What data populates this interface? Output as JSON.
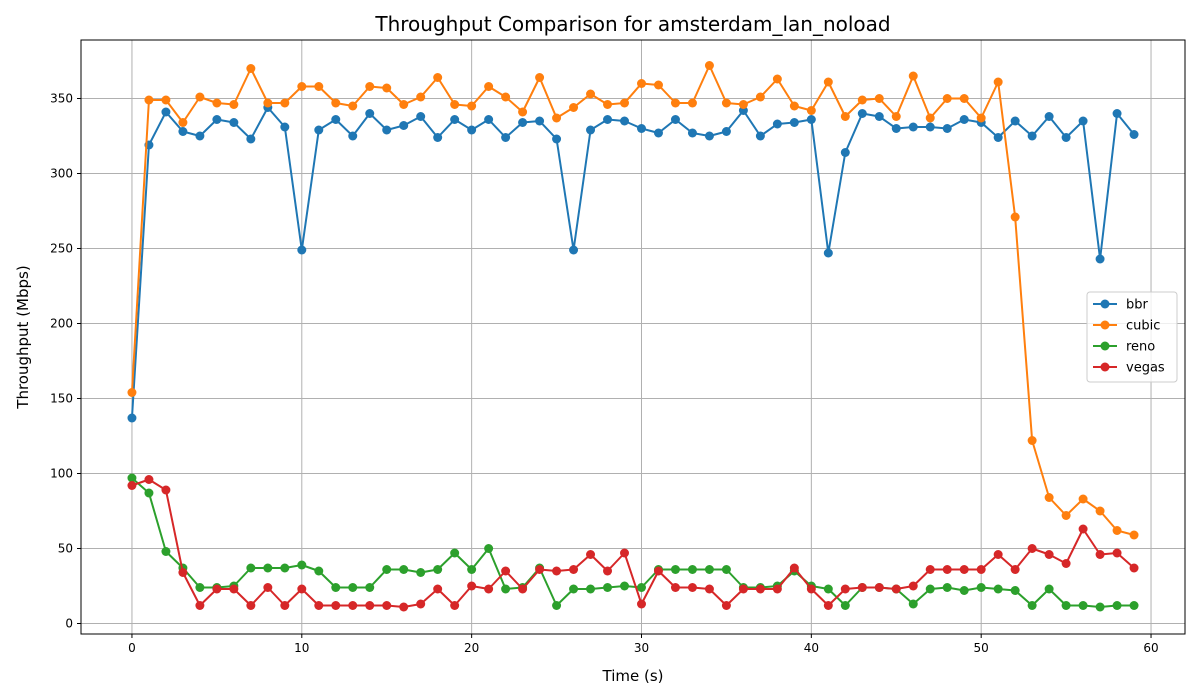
{
  "chart_data": {
    "type": "line",
    "title": "Throughput Comparison for amsterdam_lan_noload",
    "xlabel": "Time (s)",
    "ylabel": "Throughput (Mbps)",
    "xlim": [
      -3,
      62
    ],
    "ylim": [
      -7,
      389
    ],
    "xticks": [
      0,
      10,
      20,
      30,
      40,
      50,
      60
    ],
    "yticks": [
      0,
      50,
      100,
      150,
      200,
      250,
      300,
      350
    ],
    "grid": true,
    "legend_position": "center-right",
    "x": [
      0,
      1,
      2,
      3,
      4,
      5,
      6,
      7,
      8,
      9,
      10,
      11,
      12,
      13,
      14,
      15,
      16,
      17,
      18,
      19,
      20,
      21,
      22,
      23,
      24,
      25,
      26,
      27,
      28,
      29,
      30,
      31,
      32,
      33,
      34,
      35,
      36,
      37,
      38,
      39,
      40,
      41,
      42,
      43,
      44,
      45,
      46,
      47,
      48,
      49,
      50,
      51,
      52,
      53,
      54,
      55,
      56,
      57,
      58,
      59
    ],
    "series": [
      {
        "name": "bbr",
        "color": "#1f77b4",
        "values": [
          137,
          319,
          341,
          328,
          325,
          336,
          334,
          323,
          344,
          331,
          249,
          329,
          336,
          325,
          340,
          329,
          332,
          338,
          324,
          336,
          329,
          336,
          324,
          334,
          335,
          323,
          249,
          329,
          336,
          335,
          330,
          327,
          336,
          327,
          325,
          328,
          342,
          325,
          333,
          334,
          336,
          247,
          314,
          340,
          338,
          330,
          331,
          331,
          330,
          336,
          334,
          324,
          335,
          325,
          338,
          324,
          335,
          243,
          340,
          326
        ]
      },
      {
        "name": "cubic",
        "color": "#ff7f0e",
        "values": [
          154,
          349,
          349,
          334,
          351,
          347,
          346,
          370,
          347,
          347,
          358,
          358,
          347,
          345,
          358,
          357,
          346,
          351,
          364,
          346,
          345,
          358,
          351,
          341,
          364,
          337,
          344,
          353,
          346,
          347,
          360,
          359,
          347,
          347,
          372,
          347,
          346,
          351,
          363,
          345,
          342,
          361,
          338,
          349,
          350,
          338,
          365,
          337,
          350,
          350,
          337,
          361,
          271,
          122,
          84,
          72,
          83,
          75,
          62,
          59
        ]
      },
      {
        "name": "reno",
        "color": "#2ca02c",
        "values": [
          97,
          87,
          48,
          37,
          24,
          24,
          25,
          37,
          37,
          37,
          39,
          35,
          24,
          24,
          24,
          36,
          36,
          34,
          36,
          47,
          36,
          50,
          23,
          24,
          37,
          12,
          23,
          23,
          24,
          25,
          24,
          36,
          36,
          36,
          36,
          36,
          24,
          24,
          25,
          35,
          25,
          23,
          12,
          24,
          24,
          23,
          13,
          23,
          24,
          22,
          24,
          23,
          22,
          12,
          23,
          12,
          12,
          11,
          12,
          12
        ]
      },
      {
        "name": "vegas",
        "color": "#d62728",
        "values": [
          92,
          96,
          89,
          34,
          12,
          23,
          23,
          12,
          24,
          12,
          23,
          12,
          12,
          12,
          12,
          12,
          11,
          13,
          23,
          12,
          25,
          23,
          35,
          23,
          36,
          35,
          36,
          46,
          35,
          47,
          13,
          35,
          24,
          24,
          23,
          12,
          23,
          23,
          23,
          37,
          23,
          12,
          23,
          24,
          24,
          23,
          25,
          36,
          36,
          36,
          36,
          46,
          36,
          50,
          46,
          40,
          63,
          46,
          47,
          37
        ]
      }
    ]
  }
}
